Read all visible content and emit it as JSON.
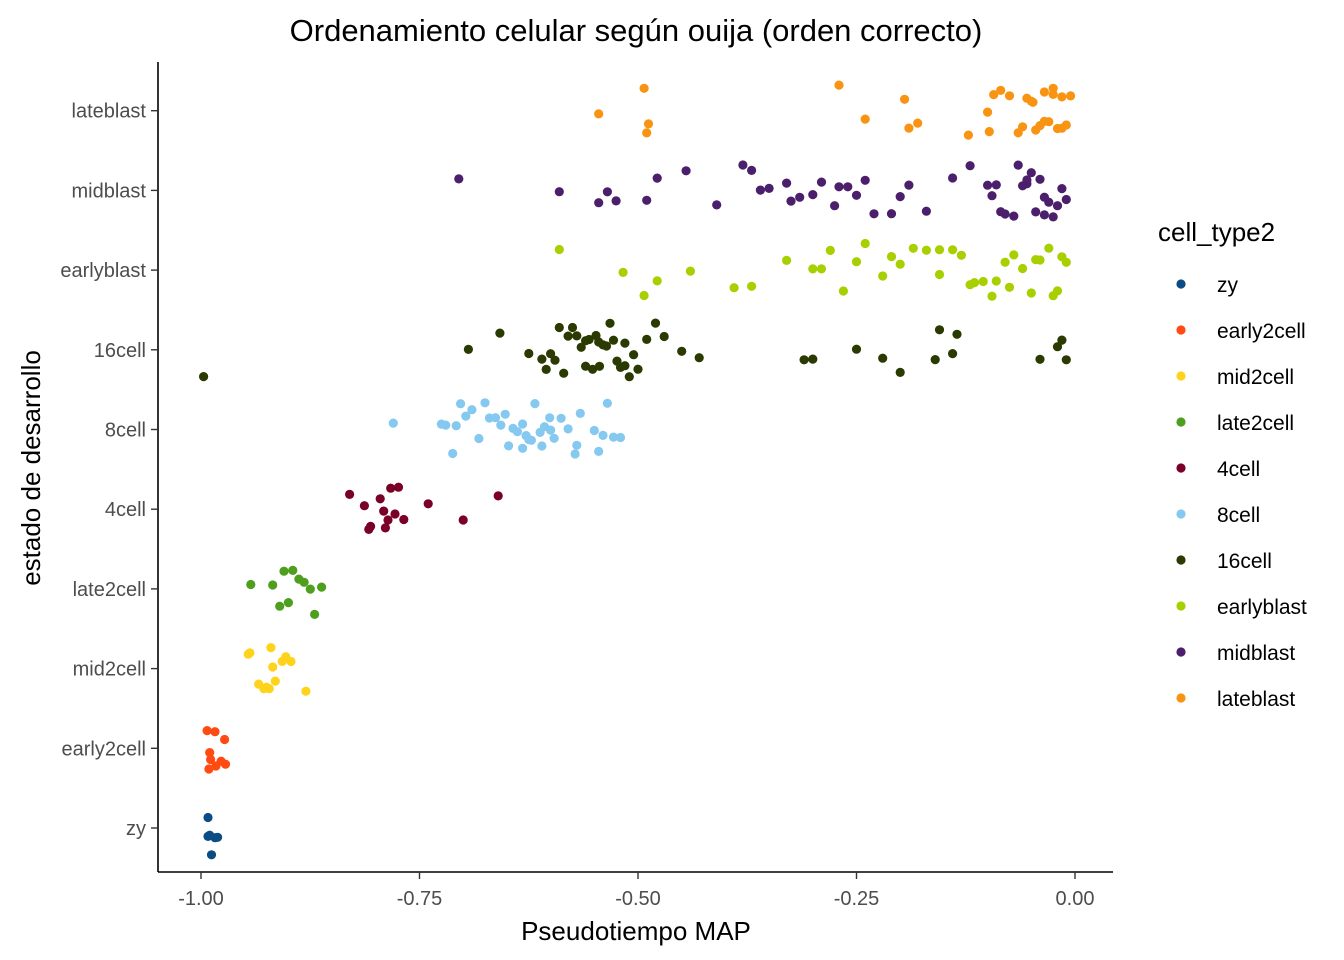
{
  "chart_data": {
    "type": "scatter",
    "title": "Ordenamiento celular según ouija (orden correcto)",
    "xlabel": "Pseudotiempo MAP",
    "ylabel": "estado de desarrollo",
    "xlim": [
      -1.0,
      0.0
    ],
    "x_ticks": [
      -1.0,
      -0.75,
      -0.5,
      -0.25,
      0.0
    ],
    "x_tick_labels": [
      "-1.00",
      "-0.75",
      "-0.50",
      "-0.25",
      "0.00"
    ],
    "categories": [
      "zy",
      "early2cell",
      "mid2cell",
      "late2cell",
      "4cell",
      "8cell",
      "16cell",
      "earlyblast",
      "midblast",
      "lateblast"
    ],
    "grid": false,
    "legend": {
      "title": "cell_type2",
      "placement": "right",
      "entries": [
        {
          "name": "zy",
          "color": "#0b4c85"
        },
        {
          "name": "early2cell",
          "color": "#ff4a12"
        },
        {
          "name": "mid2cell",
          "color": "#ffd21c"
        },
        {
          "name": "late2cell",
          "color": "#4f9f1f"
        },
        {
          "name": "4cell",
          "color": "#7a0028"
        },
        {
          "name": "8cell",
          "color": "#85c8f0"
        },
        {
          "name": "16cell",
          "color": "#2a3a00"
        },
        {
          "name": "earlyblast",
          "color": "#a8cf00"
        },
        {
          "name": "midblast",
          "color": "#4b1f6b"
        },
        {
          "name": "lateblast",
          "color": "#f89412"
        }
      ]
    },
    "series": [
      {
        "name": "zy",
        "x": [
          -0.992,
          -0.992,
          -0.99,
          -0.988,
          -0.984,
          -0.981
        ]
      },
      {
        "name": "early2cell",
        "x": [
          -0.993,
          -0.991,
          -0.989,
          -0.983,
          -0.977,
          -0.973,
          -0.972,
          -0.984,
          -0.99
        ]
      },
      {
        "name": "mid2cell",
        "x": [
          -0.946,
          -0.944,
          -0.934,
          -0.928,
          -0.925,
          -0.92,
          -0.918,
          -0.915,
          -0.907,
          -0.903,
          -0.897,
          -0.88,
          -0.922
        ]
      },
      {
        "name": "late2cell",
        "x": [
          -0.943,
          -0.918,
          -0.91,
          -0.905,
          -0.895,
          -0.888,
          -0.882,
          -0.875,
          -0.87,
          -0.862,
          -0.9
        ]
      },
      {
        "name": "4cell",
        "x": [
          -0.83,
          -0.813,
          -0.808,
          -0.806,
          -0.795,
          -0.791,
          -0.789,
          -0.786,
          -0.783,
          -0.778,
          -0.774,
          -0.768,
          -0.74,
          -0.7,
          -0.66
        ]
      },
      {
        "name": "8cell",
        "x": [
          -0.78,
          -0.725,
          -0.72,
          -0.712,
          -0.708,
          -0.703,
          -0.697,
          -0.69,
          -0.682,
          -0.675,
          -0.67,
          -0.663,
          -0.657,
          -0.652,
          -0.648,
          -0.643,
          -0.638,
          -0.632,
          -0.628,
          -0.622,
          -0.618,
          -0.612,
          -0.607,
          -0.6,
          -0.596,
          -0.588,
          -0.58,
          -0.572,
          -0.566,
          -0.55,
          -0.545,
          -0.54,
          -0.535,
          -0.528,
          -0.52,
          -0.632,
          -0.61,
          -0.625,
          -0.601,
          -0.57
        ]
      },
      {
        "name": "16cell",
        "x": [
          -0.997,
          -0.694,
          -0.658,
          -0.625,
          -0.61,
          -0.605,
          -0.6,
          -0.595,
          -0.59,
          -0.585,
          -0.575,
          -0.57,
          -0.565,
          -0.56,
          -0.556,
          -0.552,
          -0.548,
          -0.544,
          -0.54,
          -0.536,
          -0.532,
          -0.528,
          -0.524,
          -0.52,
          -0.515,
          -0.51,
          -0.505,
          -0.5,
          -0.49,
          -0.48,
          -0.47,
          -0.45,
          -0.43,
          -0.31,
          -0.3,
          -0.25,
          -0.22,
          -0.2,
          -0.16,
          -0.155,
          -0.14,
          -0.135,
          -0.04,
          -0.02,
          -0.015,
          -0.01,
          -0.545,
          -0.515,
          -0.58,
          -0.56
        ]
      },
      {
        "name": "earlyblast",
        "x": [
          -0.59,
          -0.517,
          -0.493,
          -0.478,
          -0.44,
          -0.39,
          -0.37,
          -0.33,
          -0.3,
          -0.29,
          -0.28,
          -0.265,
          -0.25,
          -0.24,
          -0.22,
          -0.2,
          -0.185,
          -0.17,
          -0.155,
          -0.14,
          -0.12,
          -0.105,
          -0.09,
          -0.08,
          -0.07,
          -0.06,
          -0.05,
          -0.04,
          -0.03,
          -0.02,
          -0.01,
          -0.095,
          -0.13,
          -0.21,
          -0.155,
          -0.025,
          -0.015,
          -0.115,
          -0.045,
          -0.075
        ]
      },
      {
        "name": "midblast",
        "x": [
          -0.705,
          -0.59,
          -0.545,
          -0.535,
          -0.525,
          -0.49,
          -0.478,
          -0.445,
          -0.41,
          -0.38,
          -0.37,
          -0.36,
          -0.35,
          -0.33,
          -0.325,
          -0.315,
          -0.3,
          -0.29,
          -0.27,
          -0.26,
          -0.25,
          -0.24,
          -0.23,
          -0.21,
          -0.2,
          -0.19,
          -0.17,
          -0.14,
          -0.12,
          -0.1,
          -0.09,
          -0.08,
          -0.07,
          -0.065,
          -0.06,
          -0.055,
          -0.05,
          -0.045,
          -0.04,
          -0.035,
          -0.03,
          -0.025,
          -0.02,
          -0.015,
          -0.01,
          -0.085,
          -0.055,
          -0.275,
          -0.095,
          -0.035
        ]
      },
      {
        "name": "lateblast",
        "x": [
          -0.545,
          -0.493,
          -0.49,
          -0.488,
          -0.27,
          -0.24,
          -0.195,
          -0.19,
          -0.18,
          -0.122,
          -0.1,
          -0.098,
          -0.093,
          -0.085,
          -0.075,
          -0.065,
          -0.06,
          -0.055,
          -0.05,
          -0.045,
          -0.04,
          -0.035,
          -0.03,
          -0.025,
          -0.02,
          -0.015,
          -0.01,
          -0.005,
          -0.035,
          -0.025,
          -0.015,
          -0.048
        ]
      }
    ]
  }
}
